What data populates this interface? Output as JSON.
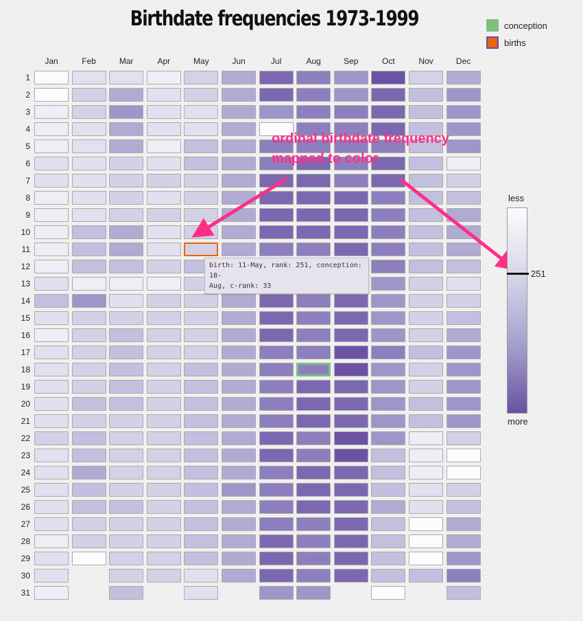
{
  "chart_data": {
    "type": "heatmap",
    "title": "Birthdate frequencies 1973-1999",
    "months": [
      "Jan",
      "Feb",
      "Mar",
      "Apr",
      "May",
      "Jun",
      "Jul",
      "Aug",
      "Sep",
      "Oct",
      "Nov",
      "Dec"
    ],
    "days": [
      1,
      2,
      3,
      4,
      5,
      6,
      7,
      8,
      9,
      10,
      11,
      12,
      13,
      14,
      15,
      16,
      17,
      18,
      19,
      20,
      21,
      22,
      23,
      24,
      25,
      26,
      27,
      28,
      29,
      30,
      31
    ],
    "days_in_month": [
      31,
      29,
      31,
      30,
      31,
      30,
      31,
      31,
      30,
      31,
      30,
      31
    ],
    "color_scale": {
      "low_label": "less",
      "high_label": "more",
      "low_color": "#fcfbfd",
      "high_color": "#54278f",
      "marker_value": "251"
    },
    "levels": [
      [
        0,
        2,
        2,
        1,
        3,
        5,
        8,
        7,
        6,
        9,
        3,
        5
      ],
      [
        0,
        3,
        5,
        2,
        3,
        5,
        8,
        7,
        6,
        8,
        4,
        6
      ],
      [
        1,
        3,
        6,
        2,
        2,
        5,
        6,
        7,
        7,
        8,
        4,
        6
      ],
      [
        1,
        2,
        5,
        2,
        2,
        5,
        0,
        7,
        7,
        8,
        4,
        6
      ],
      [
        1,
        2,
        5,
        1,
        4,
        5,
        7,
        7,
        7,
        7,
        4,
        6
      ],
      [
        2,
        2,
        3,
        2,
        4,
        5,
        7,
        8,
        7,
        8,
        4,
        1
      ],
      [
        2,
        2,
        3,
        3,
        3,
        5,
        8,
        8,
        7,
        8,
        4,
        3
      ],
      [
        1,
        2,
        3,
        2,
        3,
        5,
        8,
        8,
        8,
        7,
        4,
        4
      ],
      [
        1,
        2,
        3,
        3,
        3,
        5,
        8,
        8,
        8,
        7,
        4,
        5
      ],
      [
        1,
        4,
        5,
        2,
        3,
        5,
        8,
        8,
        8,
        7,
        4,
        5
      ],
      [
        1,
        4,
        5,
        2,
        3,
        5,
        7,
        7,
        8,
        7,
        4,
        5
      ],
      [
        1,
        4,
        4,
        3,
        4,
        5,
        7,
        7,
        8,
        7,
        4,
        4
      ],
      [
        2,
        1,
        1,
        1,
        3,
        5,
        7,
        7,
        8,
        6,
        3,
        2
      ],
      [
        4,
        6,
        2,
        3,
        3,
        5,
        8,
        7,
        8,
        6,
        3,
        3
      ],
      [
        2,
        3,
        3,
        3,
        3,
        5,
        8,
        7,
        8,
        6,
        3,
        4
      ],
      [
        1,
        3,
        4,
        3,
        3,
        5,
        8,
        7,
        8,
        6,
        3,
        5
      ],
      [
        2,
        3,
        4,
        3,
        3,
        5,
        7,
        7,
        9,
        7,
        4,
        6
      ],
      [
        2,
        3,
        4,
        3,
        4,
        5,
        7,
        7,
        9,
        6,
        3,
        6
      ],
      [
        2,
        3,
        4,
        3,
        4,
        5,
        7,
        8,
        8,
        6,
        3,
        6
      ],
      [
        2,
        4,
        4,
        3,
        4,
        5,
        7,
        8,
        8,
        6,
        4,
        6
      ],
      [
        2,
        3,
        3,
        3,
        4,
        5,
        7,
        8,
        8,
        6,
        4,
        6
      ],
      [
        3,
        4,
        3,
        3,
        4,
        5,
        8,
        7,
        9,
        6,
        1,
        3
      ],
      [
        2,
        4,
        3,
        3,
        4,
        5,
        8,
        7,
        9,
        4,
        1,
        0
      ],
      [
        2,
        5,
        3,
        3,
        4,
        5,
        7,
        8,
        8,
        4,
        1,
        0
      ],
      [
        2,
        4,
        3,
        3,
        4,
        6,
        7,
        8,
        8,
        4,
        2,
        3
      ],
      [
        2,
        4,
        4,
        3,
        4,
        5,
        7,
        8,
        8,
        5,
        2,
        4
      ],
      [
        2,
        3,
        3,
        3,
        4,
        5,
        7,
        7,
        8,
        4,
        0,
        5
      ],
      [
        1,
        3,
        3,
        3,
        4,
        5,
        8,
        7,
        8,
        4,
        0,
        5
      ],
      [
        2,
        0,
        3,
        3,
        4,
        5,
        8,
        7,
        8,
        4,
        0,
        6
      ],
      [
        2,
        null,
        3,
        3,
        2,
        5,
        8,
        7,
        8,
        4,
        4,
        7
      ],
      [
        1,
        null,
        4,
        null,
        2,
        null,
        6,
        6,
        null,
        0,
        null,
        4
      ]
    ],
    "highlight_birth": {
      "month": "May",
      "day": 11
    },
    "highlight_conception": {
      "month": "Aug",
      "day": 18
    }
  },
  "legend": [
    {
      "label": "conception",
      "fill": "#7dc07d",
      "border": "#7dc07d"
    },
    {
      "label": "births",
      "fill": "#e8650a",
      "border": "#6a4fa3"
    }
  ],
  "tooltip": {
    "line1": "birth: 11-May, rank: 251, conception: 18-",
    "line2": "Aug, c-rank: 33"
  },
  "annotation": {
    "line1": "ordinal birthdate frequency",
    "line2": "mapped to color"
  },
  "palette": [
    "#fcfbfd",
    "#efedf5",
    "#e2dfee",
    "#d4d0e6",
    "#c3bfde",
    "#b1abd3",
    "#9e96c8",
    "#8d7fbd",
    "#7b68b1",
    "#6c52a5"
  ],
  "highlight_colors": {
    "birth": "#e8650a",
    "conception": "#7dc07d",
    "arrow": "#ff2e86"
  }
}
